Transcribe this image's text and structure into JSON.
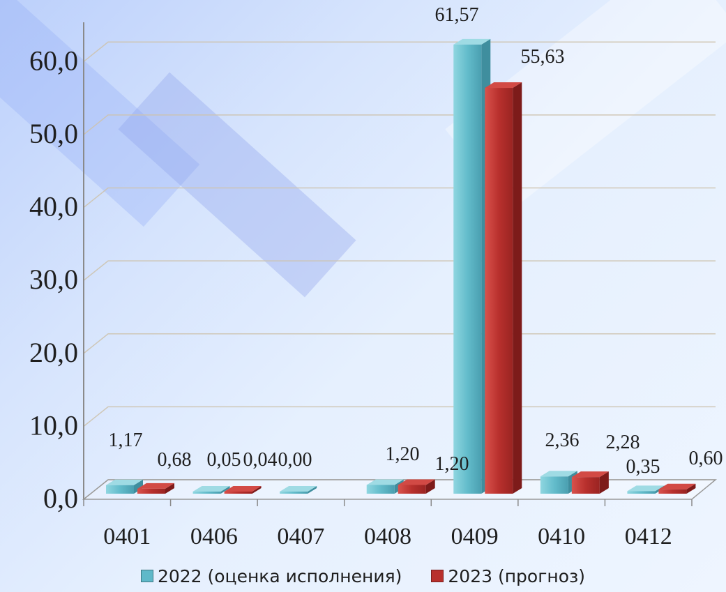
{
  "chart_data": {
    "type": "bar",
    "categories": [
      "0401",
      "0406",
      "0407",
      "0408",
      "0409",
      "0410",
      "0412"
    ],
    "series": [
      {
        "name": "2022 (оценка исполнения)",
        "color": "#5fb9c9",
        "values": [
          1.17,
          0.05,
          0.0,
          1.2,
          61.57,
          2.36,
          0.35
        ],
        "labels": [
          "1,17",
          "0,05",
          "0,00",
          "1,20",
          "61,57",
          "2,36",
          "0,35"
        ]
      },
      {
        "name": "2023 (прогноз)",
        "color": "#b8302d",
        "values": [
          0.68,
          0.04,
          null,
          1.2,
          55.63,
          2.28,
          0.6
        ],
        "labels": [
          "0,68",
          "0,04",
          "",
          "1,20",
          "55,63",
          "2,28",
          "0,60"
        ]
      }
    ],
    "yticks": [
      "0,0",
      "10,0",
      "20,0",
      "30,0",
      "40,0",
      "50,0",
      "60,0"
    ],
    "ylim": [
      0,
      65
    ],
    "grid": true,
    "legend_position": "bottom"
  }
}
